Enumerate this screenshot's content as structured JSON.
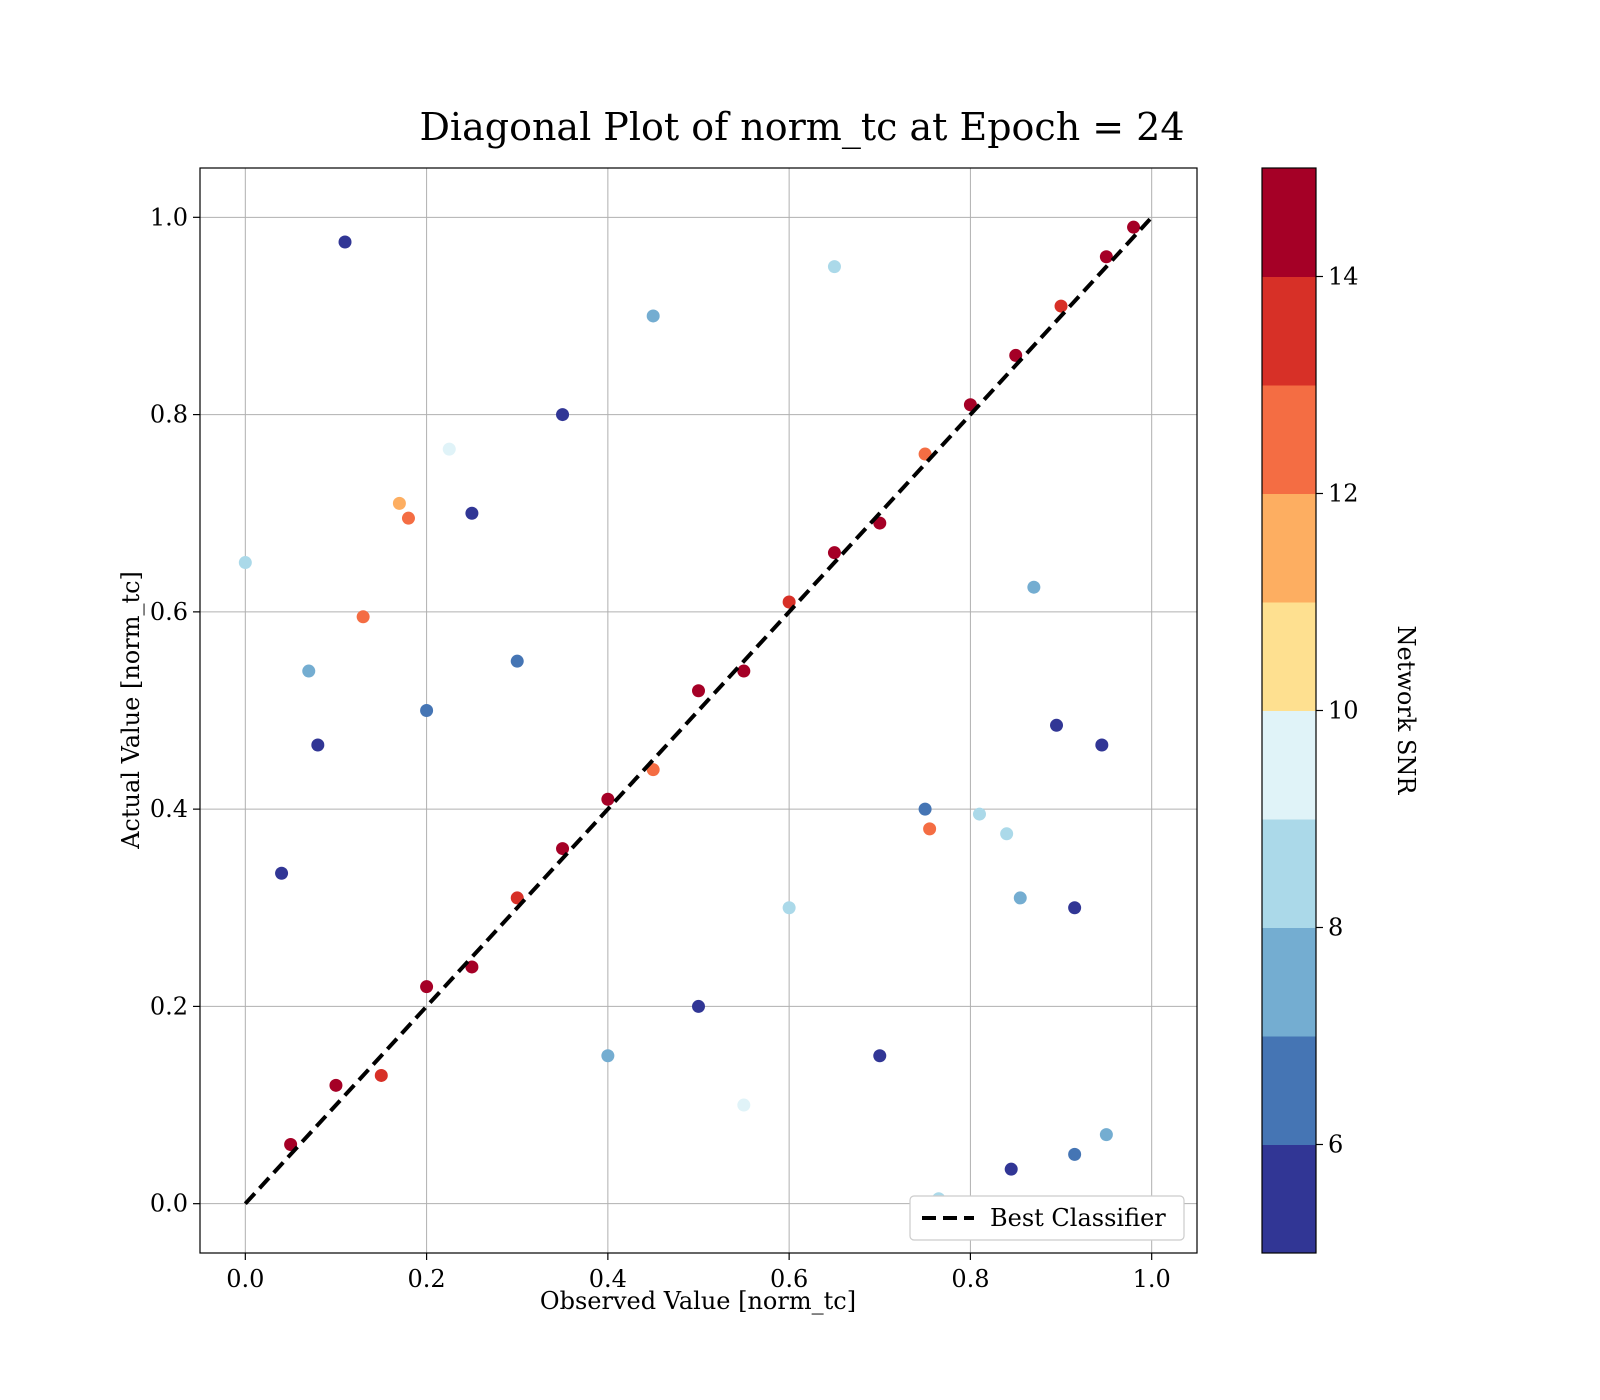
{
  "chart_data": {
    "type": "scatter",
    "title": "Diagonal Plot of norm_tc at Epoch = 24",
    "xlabel": "Observed Value [norm_tc]",
    "ylabel": "Actual Value [norm_tc]",
    "xlim": [
      -0.05,
      1.05
    ],
    "ylim": [
      -0.05,
      1.05
    ],
    "xticks": [
      "0.0",
      "0.2",
      "0.4",
      "0.6",
      "0.8",
      "1.0"
    ],
    "yticks": [
      "0.0",
      "0.2",
      "0.4",
      "0.6",
      "0.8",
      "1.0"
    ],
    "grid": true,
    "legend": {
      "position": "lower-right",
      "entries": [
        "Best Classifier"
      ]
    },
    "reference_line": {
      "name": "Best Classifier",
      "style": "dashed",
      "color": "#000000",
      "points": [
        [
          0,
          0
        ],
        [
          1,
          1
        ]
      ]
    },
    "colorbar": {
      "label": "Network SNR",
      "range": [
        5,
        15
      ],
      "ticks": [
        "6",
        "8",
        "10",
        "12",
        "14"
      ],
      "colors": [
        "#313695",
        "#4575b4",
        "#74add1",
        "#abd9e9",
        "#e0f3f8",
        "#fee090",
        "#fdae61",
        "#f46d43",
        "#d73027",
        "#a50026"
      ]
    },
    "points": [
      {
        "x": 0.05,
        "y": 0.06,
        "snr": 14.5
      },
      {
        "x": 0.1,
        "y": 0.12,
        "snr": 14.2
      },
      {
        "x": 0.15,
        "y": 0.13,
        "snr": 13.1
      },
      {
        "x": 0.2,
        "y": 0.22,
        "snr": 14.8
      },
      {
        "x": 0.25,
        "y": 0.24,
        "snr": 14.0
      },
      {
        "x": 0.3,
        "y": 0.31,
        "snr": 13.6
      },
      {
        "x": 0.35,
        "y": 0.36,
        "snr": 14.7
      },
      {
        "x": 0.4,
        "y": 0.41,
        "snr": 14.3
      },
      {
        "x": 0.45,
        "y": 0.44,
        "snr": 12.8
      },
      {
        "x": 0.5,
        "y": 0.52,
        "snr": 14.9
      },
      {
        "x": 0.55,
        "y": 0.54,
        "snr": 14.1
      },
      {
        "x": 0.6,
        "y": 0.61,
        "snr": 13.4
      },
      {
        "x": 0.65,
        "y": 0.66,
        "snr": 14.6
      },
      {
        "x": 0.7,
        "y": 0.69,
        "snr": 14.4
      },
      {
        "x": 0.75,
        "y": 0.76,
        "snr": 12.6
      },
      {
        "x": 0.8,
        "y": 0.81,
        "snr": 14.8
      },
      {
        "x": 0.85,
        "y": 0.86,
        "snr": 14.2
      },
      {
        "x": 0.9,
        "y": 0.91,
        "snr": 13.9
      },
      {
        "x": 0.95,
        "y": 0.96,
        "snr": 14.7
      },
      {
        "x": 0.98,
        "y": 0.99,
        "snr": 14.5
      },
      {
        "x": 0.3,
        "y": 0.55,
        "snr": 6.2
      },
      {
        "x": 0.35,
        "y": 0.8,
        "snr": 5.4
      },
      {
        "x": 0.45,
        "y": 0.9,
        "snr": 7.6
      },
      {
        "x": 0.5,
        "y": 0.2,
        "snr": 5.8
      },
      {
        "x": 0.6,
        "y": 0.3,
        "snr": 8.6
      },
      {
        "x": 0.7,
        "y": 0.15,
        "snr": 5.3
      },
      {
        "x": 0.2,
        "y": 0.5,
        "snr": 6.8
      },
      {
        "x": 0.4,
        "y": 0.15,
        "snr": 7.9
      },
      {
        "x": 0.75,
        "y": 0.4,
        "snr": 6.0
      },
      {
        "x": 0.65,
        "y": 0.95,
        "snr": 8.2
      },
      {
        "x": 0.55,
        "y": 0.1,
        "snr": 9.2
      },
      {
        "x": 0.25,
        "y": 0.7,
        "snr": 5.6
      },
      {
        "x": 0.0,
        "y": 0.65,
        "snr": 8.3
      },
      {
        "x": 0.11,
        "y": 0.975,
        "snr": 5.2
      },
      {
        "x": 0.08,
        "y": 0.465,
        "snr": 5.1
      },
      {
        "x": 0.04,
        "y": 0.335,
        "snr": 5.3
      },
      {
        "x": 0.07,
        "y": 0.54,
        "snr": 7.8
      },
      {
        "x": 0.17,
        "y": 0.71,
        "snr": 11.6
      },
      {
        "x": 0.18,
        "y": 0.695,
        "snr": 12.4
      },
      {
        "x": 0.13,
        "y": 0.595,
        "snr": 12.0
      },
      {
        "x": 0.225,
        "y": 0.765,
        "snr": 9.3
      },
      {
        "x": 0.755,
        "y": 0.38,
        "snr": 12.6
      },
      {
        "x": 0.915,
        "y": 0.3,
        "snr": 5.6
      },
      {
        "x": 0.945,
        "y": 0.465,
        "snr": 5.2
      },
      {
        "x": 0.895,
        "y": 0.485,
        "snr": 5.1
      },
      {
        "x": 0.84,
        "y": 0.375,
        "snr": 8.6
      },
      {
        "x": 0.81,
        "y": 0.395,
        "snr": 8.5
      },
      {
        "x": 0.87,
        "y": 0.625,
        "snr": 7.2
      },
      {
        "x": 0.845,
        "y": 0.035,
        "snr": 5.3
      },
      {
        "x": 0.95,
        "y": 0.07,
        "snr": 7.4
      },
      {
        "x": 0.915,
        "y": 0.05,
        "snr": 6.0
      },
      {
        "x": 0.855,
        "y": 0.31,
        "snr": 7.5
      },
      {
        "x": 0.765,
        "y": 0.005,
        "snr": 8.3
      }
    ]
  }
}
